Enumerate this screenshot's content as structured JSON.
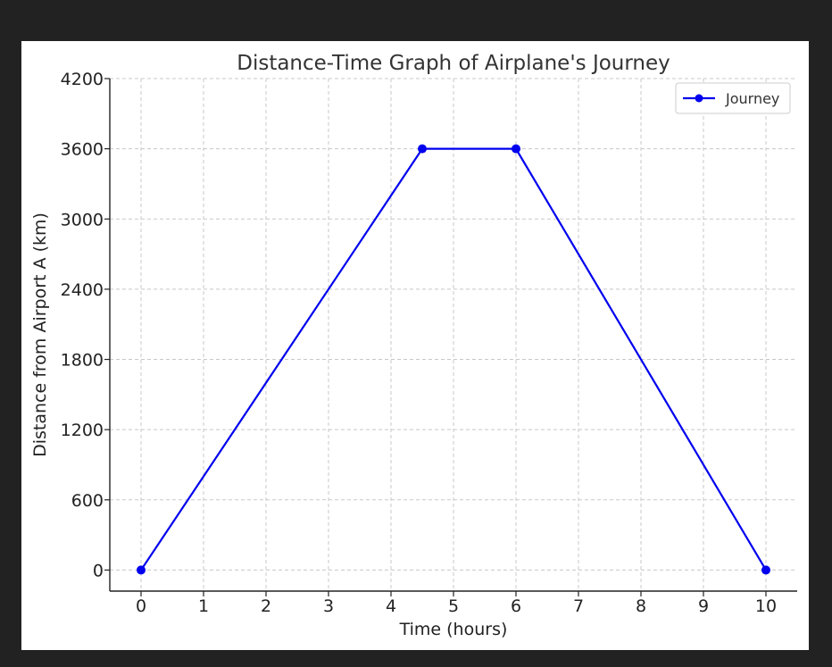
{
  "chart_data": {
    "type": "line",
    "title": "Distance-Time Graph of Airplane's Journey",
    "xlabel": "Time (hours)",
    "ylabel": "Distance from Airport A (km)",
    "xlim": [
      -0.5,
      10.5
    ],
    "ylim": [
      -180,
      4200
    ],
    "xticks": [
      0,
      1,
      2,
      3,
      4,
      5,
      6,
      7,
      8,
      9,
      10
    ],
    "yticks": [
      0,
      600,
      1200,
      1800,
      2400,
      3000,
      3600,
      4200
    ],
    "grid": true,
    "legend_position": "top-right",
    "series": [
      {
        "name": "Journey",
        "color": "#0000ee",
        "marker": "circle",
        "x": [
          0,
          4.5,
          6,
          10
        ],
        "y": [
          0,
          3600,
          3600,
          0
        ]
      }
    ]
  }
}
